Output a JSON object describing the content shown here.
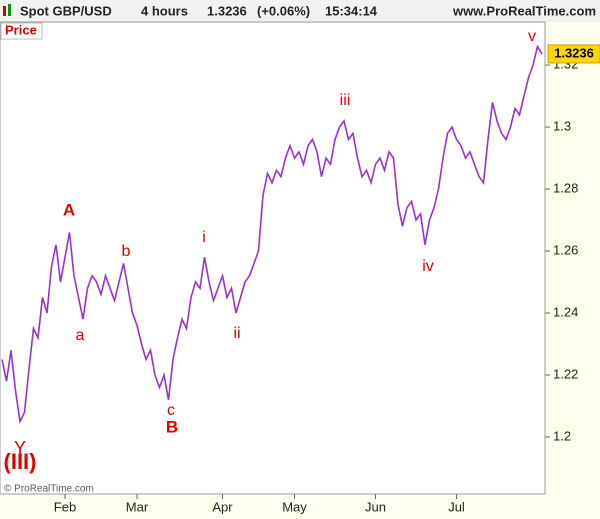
{
  "header": {
    "symbol": "Spot GBP/USD",
    "timeframe": "4 hours",
    "change": "(+0.06%)",
    "time": "15:34:14",
    "site": "www.ProRealTime.com"
  },
  "panel_label": "Price",
  "copyright": "© ProRealTime.com",
  "chart_data": {
    "type": "line",
    "categories": [
      null,
      null,
      null,
      null,
      null,
      null,
      null,
      null,
      null,
      null,
      null,
      null,
      null,
      null,
      "Feb",
      null,
      null,
      null,
      null,
      null,
      null,
      null,
      null,
      null,
      null,
      null,
      null,
      null,
      null,
      null,
      "Mar",
      null,
      null,
      null,
      null,
      null,
      null,
      null,
      null,
      null,
      null,
      null,
      null,
      null,
      null,
      null,
      null,
      null,
      null,
      "Apr",
      null,
      null,
      null,
      null,
      null,
      null,
      null,
      null,
      null,
      null,
      null,
      null,
      null,
      null,
      null,
      "May",
      null,
      null,
      null,
      null,
      null,
      null,
      null,
      null,
      null,
      null,
      null,
      null,
      null,
      null,
      null,
      null,
      null,
      "Jun",
      null,
      null,
      null,
      null,
      null,
      null,
      null,
      null,
      null,
      null,
      null,
      null,
      null,
      null,
      null,
      null,
      null,
      "Jul",
      null,
      null,
      null,
      null,
      null,
      null,
      null,
      null,
      null,
      null,
      null,
      null,
      null,
      null,
      null,
      null,
      null,
      null,
      null
    ],
    "series": [
      {
        "name": "Spot GBP/USD",
        "color": "#9932cc",
        "values": [
          1.225,
          1.218,
          1.228,
          1.215,
          1.205,
          1.208,
          1.222,
          1.235,
          1.232,
          1.245,
          1.24,
          1.255,
          1.262,
          1.25,
          1.258,
          1.266,
          1.252,
          1.245,
          1.238,
          1.248,
          1.252,
          1.25,
          1.246,
          1.252,
          1.248,
          1.244,
          1.25,
          1.256,
          1.248,
          1.24,
          1.236,
          1.23,
          1.225,
          1.228,
          1.22,
          1.216,
          1.22,
          1.212,
          1.225,
          1.232,
          1.238,
          1.235,
          1.245,
          1.25,
          1.248,
          1.258,
          1.25,
          1.244,
          1.248,
          1.252,
          1.245,
          1.248,
          1.24,
          1.245,
          1.25,
          1.252,
          1.256,
          1.26,
          1.278,
          1.285,
          1.282,
          1.286,
          1.284,
          1.29,
          1.294,
          1.29,
          1.292,
          1.288,
          1.294,
          1.296,
          1.292,
          1.284,
          1.29,
          1.288,
          1.296,
          1.3,
          1.302,
          1.296,
          1.298,
          1.29,
          1.284,
          1.286,
          1.282,
          1.288,
          1.29,
          1.286,
          1.292,
          1.29,
          1.275,
          1.268,
          1.274,
          1.276,
          1.27,
          1.272,
          1.262,
          1.27,
          1.274,
          1.28,
          1.29,
          1.298,
          1.3,
          1.296,
          1.294,
          1.29,
          1.292,
          1.288,
          1.284,
          1.282,
          1.296,
          1.308,
          1.302,
          1.298,
          1.296,
          1.3,
          1.306,
          1.304,
          1.31,
          1.316,
          1.32,
          1.326,
          1.3236
        ]
      }
    ],
    "ylim": [
      1.1816,
      1.3339
    ],
    "yticks": [
      1.2,
      1.22,
      1.24,
      1.26,
      1.28,
      1.3,
      1.32
    ],
    "annotations": [
      "(III)",
      "Y",
      "A",
      "a",
      "b",
      "c",
      "B",
      "i",
      "ii",
      "iii",
      "iv",
      "v"
    ],
    "annotation_color": "#e00000"
  }
}
